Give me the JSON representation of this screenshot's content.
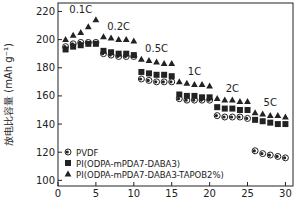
{
  "chart_data": {
    "type": "scatter",
    "y_label": "放电比容量 (mAh g⁻¹)",
    "x": [
      1,
      2,
      3,
      4,
      5,
      6,
      7,
      8,
      9,
      10,
      11,
      12,
      13,
      14,
      15,
      16,
      17,
      18,
      19,
      20,
      21,
      22,
      23,
      24,
      25,
      26,
      27,
      28,
      29,
      30
    ],
    "series": [
      {
        "name": "PVDF",
        "color": "#222222",
        "marker": "circle",
        "values": [
          195,
          197,
          198,
          198,
          198,
          190,
          189,
          188,
          188,
          188,
          172,
          171,
          170,
          170,
          170,
          158,
          157,
          157,
          157,
          157,
          146,
          145,
          145,
          145,
          144,
          121,
          119,
          118,
          117,
          116
        ]
      },
      {
        "name": "PI(ODPA-mPDA7-DABA3)",
        "color": "#222222",
        "marker": "square",
        "values": [
          193,
          195,
          196,
          197,
          197,
          192,
          191,
          190,
          190,
          189,
          177,
          176,
          175,
          175,
          174,
          161,
          160,
          160,
          159,
          159,
          152,
          151,
          151,
          150,
          150,
          143,
          142,
          141,
          140,
          140
        ]
      },
      {
        "name": "PI(ODPA-mPDA7-DABA3-TAPOB2%)",
        "color": "#222222",
        "marker": "triangle",
        "values": [
          200,
          203,
          205,
          209,
          214,
          202,
          201,
          200,
          200,
          199,
          186,
          185,
          184,
          183,
          183,
          170,
          169,
          168,
          168,
          167,
          158,
          157,
          157,
          156,
          156,
          148,
          147,
          146,
          146,
          145
        ]
      }
    ],
    "annotations": [
      "0.1C",
      "0.2C",
      "0.5C",
      "1C",
      "2C",
      "5C"
    ],
    "xlim": [
      0,
      31
    ],
    "xticks": [
      0,
      5,
      10,
      15,
      20,
      25,
      30
    ],
    "ylim": [
      96,
      226
    ],
    "yticks": [
      100,
      120,
      140,
      160,
      180,
      200,
      220
    ],
    "grid": false,
    "legend": "lower left"
  }
}
